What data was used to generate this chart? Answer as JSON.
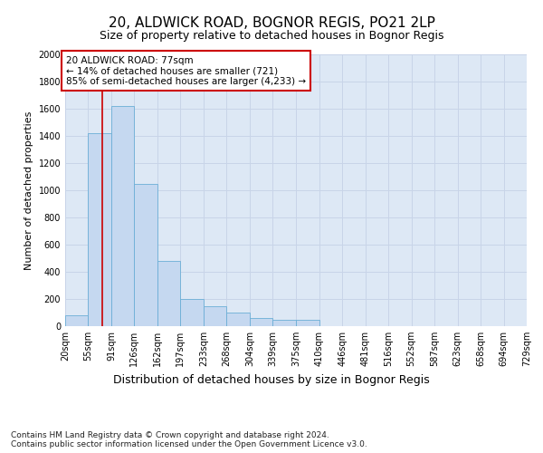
{
  "title": "20, ALDWICK ROAD, BOGNOR REGIS, PO21 2LP",
  "subtitle": "Size of property relative to detached houses in Bognor Regis",
  "xlabel": "Distribution of detached houses by size in Bognor Regis",
  "ylabel": "Number of detached properties",
  "bins": [
    20,
    55,
    91,
    126,
    162,
    197,
    233,
    268,
    304,
    339,
    375,
    410,
    446,
    481,
    516,
    552,
    587,
    623,
    658,
    694,
    729
  ],
  "bin_labels": [
    "20sqm",
    "55sqm",
    "91sqm",
    "126sqm",
    "162sqm",
    "197sqm",
    "233sqm",
    "268sqm",
    "304sqm",
    "339sqm",
    "375sqm",
    "410sqm",
    "446sqm",
    "481sqm",
    "516sqm",
    "552sqm",
    "587sqm",
    "623sqm",
    "658sqm",
    "694sqm",
    "729sqm"
  ],
  "bar_heights": [
    80,
    1420,
    1620,
    1050,
    480,
    200,
    150,
    100,
    60,
    50,
    50,
    0,
    0,
    0,
    0,
    0,
    0,
    0,
    0,
    0
  ],
  "bar_color": "#c5d8f0",
  "bar_edge_color": "#6baed6",
  "grid_color": "#c8d4e8",
  "bg_color": "#dde8f5",
  "vline_x": 77,
  "vline_color": "#cc0000",
  "ylim": [
    0,
    2000
  ],
  "yticks": [
    0,
    200,
    400,
    600,
    800,
    1000,
    1200,
    1400,
    1600,
    1800,
    2000
  ],
  "annotation_text": "20 ALDWICK ROAD: 77sqm\n← 14% of detached houses are smaller (721)\n85% of semi-detached houses are larger (4,233) →",
  "footnote": "Contains HM Land Registry data © Crown copyright and database right 2024.\nContains public sector information licensed under the Open Government Licence v3.0.",
  "title_fontsize": 11,
  "subtitle_fontsize": 9,
  "xlabel_fontsize": 9,
  "ylabel_fontsize": 8,
  "tick_fontsize": 7,
  "annotation_fontsize": 7.5,
  "footnote_fontsize": 6.5
}
